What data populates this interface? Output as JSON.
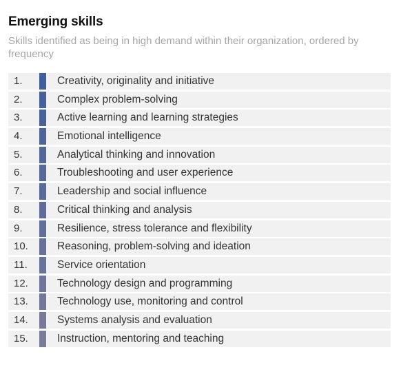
{
  "header": {
    "title": "Emerging skills",
    "subtitle": "Skills identified as being in high demand within their organization, ordered by frequency"
  },
  "colors": {
    "bar_top": "#405e9e",
    "bar_bottom": "#7b7c9b",
    "row_background": "#f1f1f1"
  },
  "chart_data": {
    "type": "table",
    "title": "Emerging skills",
    "subtitle": "Skills identified as being in high demand within their organization, ordered by frequency",
    "rows": [
      {
        "rank": "1.",
        "skill": "Creativity, originality and initiative"
      },
      {
        "rank": "2.",
        "skill": "Complex problem-solving"
      },
      {
        "rank": "3.",
        "skill": "Active learning and learning strategies"
      },
      {
        "rank": "4.",
        "skill": "Emotional intelligence"
      },
      {
        "rank": "5.",
        "skill": "Analytical thinking and innovation"
      },
      {
        "rank": "6.",
        "skill": "Troubleshooting and user experience"
      },
      {
        "rank": "7.",
        "skill": "Leadership and social influence"
      },
      {
        "rank": "8.",
        "skill": "Critical thinking and analysis"
      },
      {
        "rank": "9.",
        "skill": "Resilience, stress tolerance and flexibility"
      },
      {
        "rank": "10.",
        "skill": "Reasoning, problem-solving and ideation"
      },
      {
        "rank": "11.",
        "skill": "Service orientation"
      },
      {
        "rank": "12.",
        "skill": "Technology design and programming"
      },
      {
        "rank": "13.",
        "skill": "Technology use, monitoring and control"
      },
      {
        "rank": "14.",
        "skill": "Systems analysis and evaluation"
      },
      {
        "rank": "15.",
        "skill": "Instruction, mentoring and teaching"
      }
    ]
  }
}
